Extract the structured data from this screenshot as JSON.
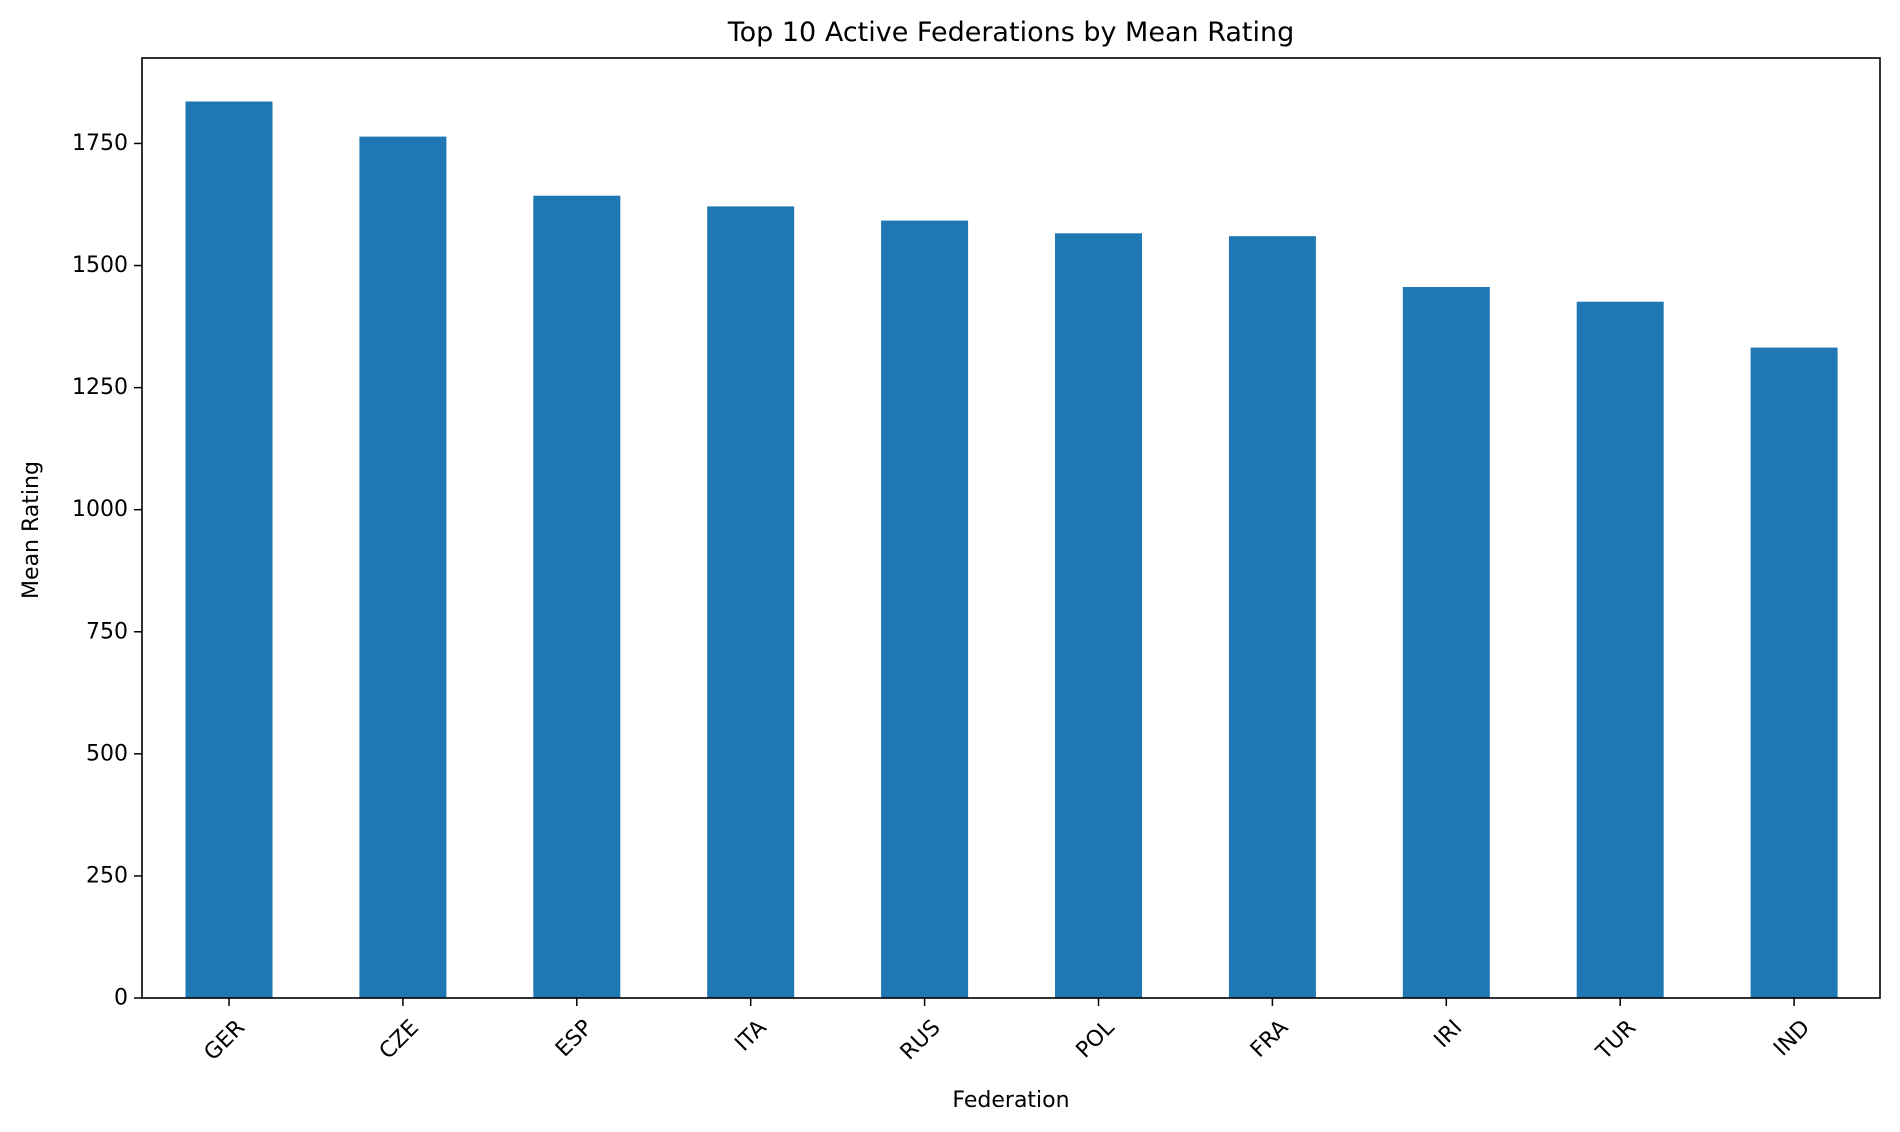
{
  "chart_data": {
    "type": "bar",
    "title": "Top 10 Active Federations by Mean Rating",
    "xlabel": "Federation",
    "ylabel": "Mean Rating",
    "categories": [
      "GER",
      "CZE",
      "ESP",
      "ITA",
      "RUS",
      "POL",
      "FRA",
      "IRI",
      "TUR",
      "IND"
    ],
    "values": [
      1836,
      1764,
      1643,
      1621,
      1592,
      1566,
      1560,
      1456,
      1426,
      1332
    ],
    "ylim": [
      0,
      1925
    ],
    "yticks": [
      0,
      250,
      500,
      750,
      1000,
      1250,
      1500,
      1750
    ],
    "bar_color": "#1f77b4",
    "grid": false,
    "xtick_rotation_deg": 45
  }
}
